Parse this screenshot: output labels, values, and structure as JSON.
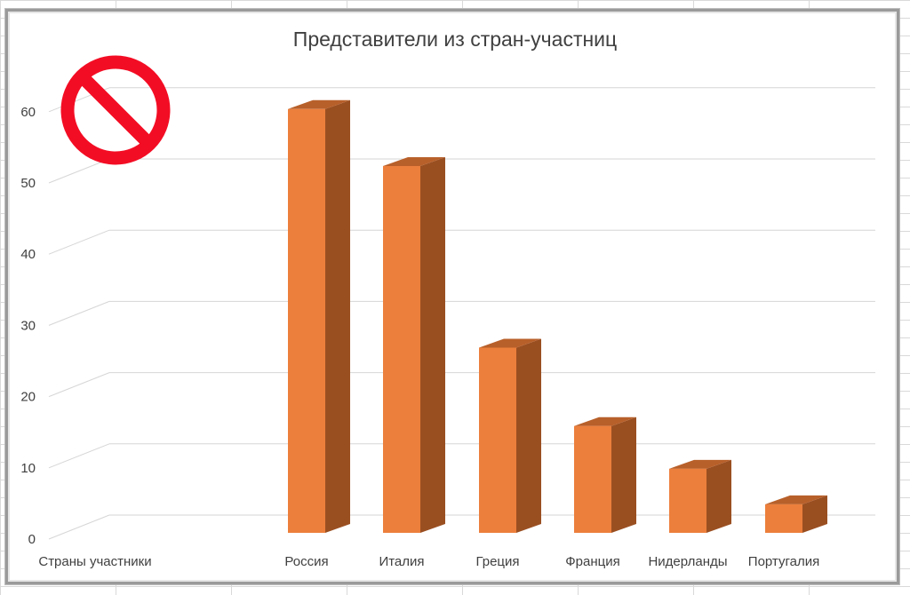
{
  "chart_data": {
    "type": "bar",
    "title": "Представители из стран-участниц",
    "categories": [
      "Страны участники",
      "Россия",
      "Италия",
      "Греция",
      "Франция",
      "Нидерланды",
      "Португалия"
    ],
    "values": [
      0,
      59.5,
      51.5,
      26,
      15,
      9,
      4
    ],
    "yticks": [
      "0",
      "10",
      "20",
      "30",
      "40",
      "50",
      "60"
    ],
    "ylim": [
      0,
      60
    ],
    "grid": true,
    "legend": "none",
    "bar_color": "#ec7f3c",
    "bar_side_color": "#9a4f21",
    "bar_top_color": "#b8602a",
    "three_d": true
  },
  "overlay": {
    "icon": "no-entry-icon",
    "color": "#f30d24"
  }
}
